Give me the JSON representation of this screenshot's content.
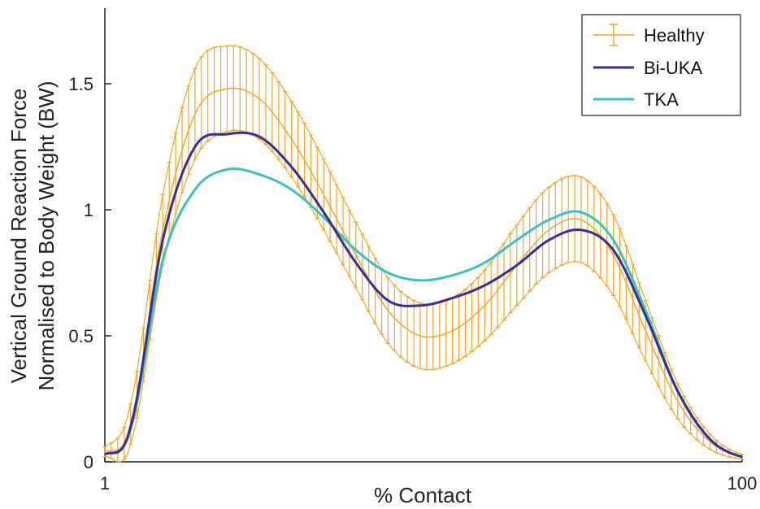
{
  "chart_data": {
    "type": "line",
    "title": "",
    "xlabel": "% Contact",
    "ylabel_lines": [
      "Vertical Ground Reaction Force",
      "Normalised to Body Weight (BW)"
    ],
    "xlim": [
      1,
      100
    ],
    "ylim": [
      0,
      1.8
    ],
    "x_ticks": [
      1,
      100
    ],
    "x_tick_labels": [
      "1",
      "100"
    ],
    "y_ticks": [
      0,
      0.5,
      1,
      1.5
    ],
    "y_tick_labels": [
      "0",
      "0.5",
      "1",
      "1.5"
    ],
    "grid": false,
    "legend": "top-right",
    "x": [
      1,
      5,
      10,
      15,
      20,
      25,
      30,
      35,
      40,
      45,
      50,
      55,
      60,
      65,
      70,
      75,
      80,
      85,
      90,
      95,
      100
    ],
    "series": [
      {
        "name": "Healthy",
        "color": "#F0A82A",
        "values": [
          0.04,
          0.15,
          0.92,
          1.38,
          1.48,
          1.44,
          1.28,
          1.06,
          0.82,
          0.6,
          0.5,
          0.52,
          0.62,
          0.78,
          0.92,
          0.96,
          0.82,
          0.52,
          0.24,
          0.08,
          0.02
        ],
        "error": [
          0.02,
          0.08,
          0.14,
          0.18,
          0.17,
          0.16,
          0.15,
          0.14,
          0.13,
          0.13,
          0.13,
          0.13,
          0.14,
          0.16,
          0.17,
          0.17,
          0.16,
          0.12,
          0.07,
          0.03,
          0.01
        ]
      },
      {
        "name": "Bi-UKA",
        "color": "#3A2C92",
        "values": [
          0.03,
          0.14,
          0.88,
          1.25,
          1.3,
          1.29,
          1.17,
          0.99,
          0.79,
          0.64,
          0.62,
          0.65,
          0.7,
          0.78,
          0.88,
          0.92,
          0.84,
          0.58,
          0.28,
          0.09,
          0.02
        ]
      },
      {
        "name": "TKA",
        "color": "#3CC0BE",
        "values": [
          0.03,
          0.13,
          0.8,
          1.08,
          1.16,
          1.14,
          1.08,
          0.97,
          0.84,
          0.75,
          0.72,
          0.74,
          0.79,
          0.88,
          0.96,
          0.99,
          0.88,
          0.6,
          0.28,
          0.09,
          0.02
        ]
      }
    ]
  }
}
